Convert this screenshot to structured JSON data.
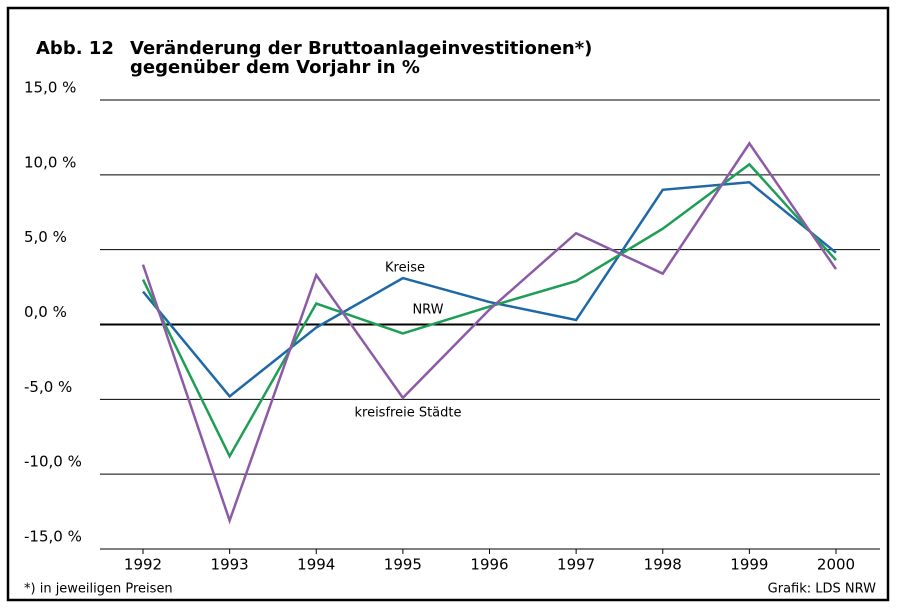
{
  "chart_data": {
    "type": "line",
    "figure_label": "Abb. 12",
    "title_lines": [
      "Veränderung der Bruttoanlageinvestitionen*)",
      "gegenüber dem Vorjahr in %"
    ],
    "categories": [
      "1992",
      "1993",
      "1994",
      "1995",
      "1996",
      "1997",
      "1998",
      "1999",
      "2000"
    ],
    "series": [
      {
        "name": "Kreise",
        "color": "#1f68a8",
        "values": [
          2.2,
          -4.8,
          -0.2,
          3.1,
          1.5,
          0.3,
          9.0,
          9.5,
          4.8
        ]
      },
      {
        "name": "NRW",
        "color": "#1e9e55",
        "values": [
          3.0,
          -8.8,
          1.4,
          -0.6,
          1.2,
          2.9,
          6.4,
          10.7,
          4.3
        ]
      },
      {
        "name": "kreisfreie Städte",
        "color": "#8c5aa6",
        "values": [
          4.0,
          -13.1,
          3.3,
          -4.9,
          1.0,
          6.1,
          3.4,
          12.1,
          3.7
        ]
      }
    ],
    "ylim": [
      -15,
      15
    ],
    "yticks": [
      {
        "value": -15,
        "label": "-15,0 %"
      },
      {
        "value": -10,
        "label": "-10,0 %"
      },
      {
        "value": -5,
        "label": "-5,0 %"
      },
      {
        "value": 0,
        "label": "0,0 %"
      },
      {
        "value": 5,
        "label": "5,0 %"
      },
      {
        "value": 10,
        "label": "10,0 %"
      },
      {
        "value": 15,
        "label": "15,0 %"
      }
    ],
    "grid": true,
    "footnote": "*) in jeweiligen Preisen",
    "source": "Grafik: LDS NRW"
  }
}
